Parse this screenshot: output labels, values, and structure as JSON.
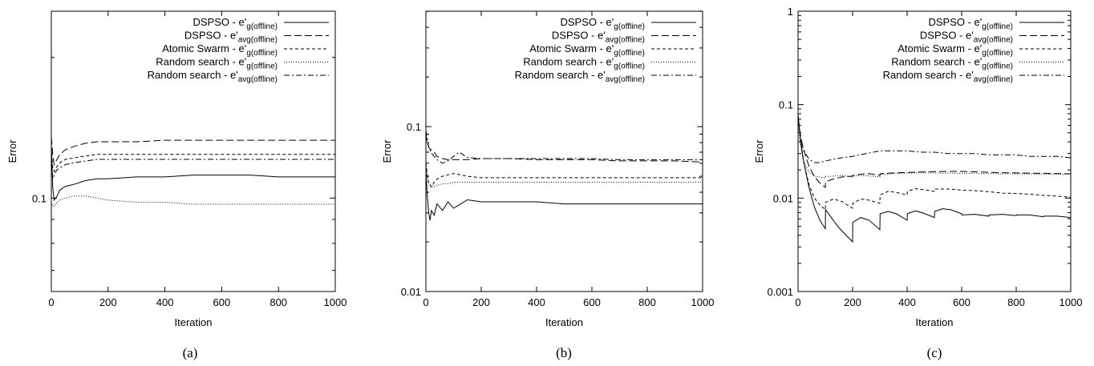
{
  "chart_data": [
    {
      "type": "line",
      "caption": "(a)",
      "xlabel": "Iteration",
      "ylabel": "Error",
      "xlim": [
        0,
        1000
      ],
      "ylim_log": [
        -1.2,
        -0.6
      ],
      "yscale": "log",
      "x_ticks": [
        "0",
        "200",
        "400",
        "600",
        "800",
        "1000"
      ],
      "y_ticks": [
        {
          "value": 0.1,
          "label": "0.1"
        }
      ],
      "legend_position": "top-right",
      "series": [
        {
          "name": "DSPSO - e'",
          "sub": "g(offline)",
          "dash": "",
          "x": [
            0,
            5,
            10,
            20,
            30,
            50,
            80,
            120,
            160,
            200,
            300,
            400,
            500,
            600,
            700,
            800,
            900,
            1000
          ],
          "y": [
            0.13,
            0.105,
            0.099,
            0.101,
            0.104,
            0.106,
            0.107,
            0.109,
            0.11,
            0.11,
            0.111,
            0.111,
            0.112,
            0.112,
            0.112,
            0.111,
            0.111,
            0.111
          ]
        },
        {
          "name": "DSPSO - e'",
          "sub": "avg(offline)",
          "dash": "9,4",
          "x": [
            0,
            5,
            10,
            20,
            30,
            50,
            80,
            120,
            160,
            200,
            300,
            400,
            500,
            600,
            700,
            800,
            900,
            1000
          ],
          "y": [
            0.135,
            0.124,
            0.118,
            0.121,
            0.124,
            0.127,
            0.129,
            0.131,
            0.132,
            0.132,
            0.132,
            0.133,
            0.133,
            0.133,
            0.133,
            0.133,
            0.133,
            0.133
          ]
        },
        {
          "name": "Atomic Swarm - e'",
          "sub": "g(offline)",
          "dash": "4,3",
          "x": [
            0,
            5,
            10,
            20,
            30,
            50,
            80,
            120,
            160,
            200,
            300,
            400,
            500,
            600,
            700,
            800,
            900,
            1000
          ],
          "y": [
            0.128,
            0.116,
            0.114,
            0.117,
            0.119,
            0.121,
            0.122,
            0.123,
            0.124,
            0.124,
            0.124,
            0.124,
            0.124,
            0.124,
            0.124,
            0.124,
            0.124,
            0.124
          ]
        },
        {
          "name": "Random search - e'",
          "sub": "g(offline)",
          "dash": "1,2",
          "x": [
            0,
            5,
            10,
            20,
            30,
            50,
            80,
            120,
            160,
            200,
            300,
            400,
            500,
            600,
            700,
            800,
            900,
            1000
          ],
          "y": [
            0.098,
            0.096,
            0.096,
            0.098,
            0.099,
            0.1,
            0.101,
            0.101,
            0.1,
            0.099,
            0.098,
            0.098,
            0.097,
            0.097,
            0.097,
            0.097,
            0.097,
            0.097
          ]
        },
        {
          "name": "Random search - e'",
          "sub": "avg(offline)",
          "dash": "7,3,2,3",
          "x": [
            0,
            5,
            10,
            20,
            30,
            50,
            80,
            120,
            160,
            200,
            300,
            400,
            500,
            600,
            700,
            800,
            900,
            1000
          ],
          "y": [
            0.12,
            0.11,
            0.112,
            0.115,
            0.116,
            0.118,
            0.119,
            0.12,
            0.121,
            0.121,
            0.121,
            0.121,
            0.121,
            0.121,
            0.121,
            0.121,
            0.121,
            0.121
          ]
        }
      ]
    },
    {
      "type": "line",
      "caption": "(b)",
      "xlabel": "Iteration",
      "ylabel": "Error",
      "xlim": [
        0,
        1000
      ],
      "ylim_log": [
        -2,
        -0.3
      ],
      "yscale": "log",
      "x_ticks": [
        "0",
        "200",
        "400",
        "600",
        "800",
        "1000"
      ],
      "y_ticks": [
        {
          "value": 0.01,
          "label": "0.01"
        },
        {
          "value": 0.1,
          "label": "0.1"
        }
      ],
      "legend_position": "top-right",
      "series": [
        {
          "name": "DSPSO - e'",
          "sub": "g(offline)",
          "dash": "",
          "x": [
            0,
            5,
            10,
            15,
            20,
            30,
            40,
            60,
            80,
            100,
            150,
            200,
            300,
            400,
            500,
            600,
            700,
            800,
            900,
            1000
          ],
          "y": [
            0.055,
            0.038,
            0.03,
            0.027,
            0.031,
            0.029,
            0.034,
            0.031,
            0.035,
            0.032,
            0.036,
            0.035,
            0.035,
            0.035,
            0.034,
            0.034,
            0.034,
            0.034,
            0.034,
            0.034
          ]
        },
        {
          "name": "DSPSO - e'",
          "sub": "avg(offline)",
          "dash": "9,4",
          "x": [
            0,
            5,
            10,
            20,
            30,
            40,
            60,
            80,
            100,
            150,
            200,
            300,
            400,
            500,
            600,
            700,
            800,
            900,
            1000
          ],
          "y": [
            0.09,
            0.08,
            0.075,
            0.072,
            0.07,
            0.066,
            0.064,
            0.063,
            0.063,
            0.063,
            0.064,
            0.064,
            0.063,
            0.063,
            0.063,
            0.062,
            0.062,
            0.062,
            0.061
          ]
        },
        {
          "name": "Atomic Swarm - e'",
          "sub": "g(offline)",
          "dash": "4,3",
          "x": [
            0,
            5,
            10,
            20,
            30,
            40,
            60,
            80,
            100,
            150,
            200,
            300,
            400,
            500,
            600,
            700,
            800,
            900,
            1000
          ],
          "y": [
            0.06,
            0.052,
            0.045,
            0.043,
            0.046,
            0.048,
            0.05,
            0.051,
            0.052,
            0.05,
            0.049,
            0.049,
            0.049,
            0.049,
            0.049,
            0.049,
            0.049,
            0.049,
            0.049
          ]
        },
        {
          "name": "Random search - e'",
          "sub": "g(offline)",
          "dash": "1,2",
          "x": [
            0,
            5,
            10,
            20,
            30,
            40,
            60,
            80,
            100,
            150,
            200,
            300,
            400,
            500,
            600,
            700,
            800,
            900,
            1000
          ],
          "y": [
            0.06,
            0.05,
            0.046,
            0.044,
            0.043,
            0.044,
            0.045,
            0.045,
            0.046,
            0.046,
            0.046,
            0.046,
            0.046,
            0.046,
            0.046,
            0.046,
            0.046,
            0.046,
            0.046
          ]
        },
        {
          "name": "Random search - e'",
          "sub": "avg(offline)",
          "dash": "7,3,2,3",
          "x": [
            0,
            5,
            10,
            20,
            30,
            40,
            60,
            80,
            100,
            120,
            150,
            200,
            300,
            400,
            500,
            600,
            700,
            800,
            900,
            1000
          ],
          "y": [
            0.095,
            0.085,
            0.075,
            0.069,
            0.066,
            0.063,
            0.06,
            0.062,
            0.066,
            0.07,
            0.065,
            0.064,
            0.064,
            0.064,
            0.064,
            0.064,
            0.063,
            0.063,
            0.063,
            0.063
          ]
        }
      ]
    },
    {
      "type": "line",
      "caption": "(c)",
      "xlabel": "Iteration",
      "ylabel": "Error",
      "xlim": [
        0,
        1000
      ],
      "ylim_log": [
        -3,
        0
      ],
      "yscale": "log",
      "x_ticks": [
        "0",
        "200",
        "400",
        "600",
        "800",
        "1000"
      ],
      "y_ticks": [
        {
          "value": 0.001,
          "label": "0.001"
        },
        {
          "value": 0.01,
          "label": "0.01"
        },
        {
          "value": 0.1,
          "label": "0.1"
        },
        {
          "value": 1,
          "label": "1"
        }
      ],
      "legend_position": "top-right",
      "series": [
        {
          "name": "DSPSO - e'",
          "sub": "g(offline)",
          "dash": "",
          "x": [
            0,
            10,
            20,
            40,
            60,
            80,
            100,
            101,
            120,
            150,
            200,
            201,
            230,
            260,
            300,
            301,
            330,
            360,
            400,
            401,
            430,
            460,
            500,
            501,
            530,
            560,
            600,
            601,
            650,
            700,
            701,
            750,
            800,
            801,
            850,
            900,
            901,
            950,
            1000
          ],
          "y": [
            0.08,
            0.04,
            0.025,
            0.013,
            0.008,
            0.0058,
            0.0047,
            0.0075,
            0.0063,
            0.0048,
            0.0034,
            0.0055,
            0.0062,
            0.0058,
            0.0046,
            0.0068,
            0.0072,
            0.0068,
            0.0058,
            0.0068,
            0.0073,
            0.0069,
            0.0062,
            0.0072,
            0.0077,
            0.0075,
            0.0068,
            0.0066,
            0.0067,
            0.0064,
            0.0066,
            0.0067,
            0.0065,
            0.0066,
            0.0066,
            0.0063,
            0.0064,
            0.0064,
            0.0062
          ]
        },
        {
          "name": "DSPSO - e'",
          "sub": "avg(offline)",
          "dash": "9,4",
          "x": [
            0,
            10,
            20,
            40,
            60,
            80,
            100,
            101,
            130,
            160,
            200,
            201,
            230,
            260,
            300,
            301,
            350,
            400,
            450,
            500,
            550,
            600,
            650,
            700,
            750,
            800,
            850,
            900,
            950,
            1000
          ],
          "y": [
            0.07,
            0.045,
            0.033,
            0.022,
            0.017,
            0.0145,
            0.013,
            0.015,
            0.016,
            0.0168,
            0.0172,
            0.0175,
            0.018,
            0.0183,
            0.0175,
            0.0182,
            0.0186,
            0.0188,
            0.019,
            0.0192,
            0.0193,
            0.0193,
            0.0191,
            0.0189,
            0.0187,
            0.0186,
            0.0185,
            0.0184,
            0.0183,
            0.0182
          ]
        },
        {
          "name": "Atomic Swarm - e'",
          "sub": "g(offline)",
          "dash": "4,3",
          "x": [
            0,
            10,
            20,
            40,
            60,
            80,
            100,
            101,
            130,
            160,
            200,
            201,
            230,
            260,
            300,
            301,
            330,
            360,
            400,
            401,
            430,
            460,
            500,
            501,
            550,
            600,
            650,
            700,
            750,
            800,
            850,
            900,
            950,
            1000
          ],
          "y": [
            0.075,
            0.04,
            0.025,
            0.014,
            0.01,
            0.0085,
            0.0075,
            0.009,
            0.0098,
            0.0092,
            0.0078,
            0.0088,
            0.0098,
            0.0095,
            0.0088,
            0.0108,
            0.0118,
            0.0115,
            0.0108,
            0.0118,
            0.0126,
            0.0123,
            0.0118,
            0.0125,
            0.0125,
            0.0122,
            0.012,
            0.0117,
            0.0113,
            0.0112,
            0.011,
            0.0107,
            0.0105,
            0.0102
          ]
        },
        {
          "name": "Random search - e'",
          "sub": "g(offline)",
          "dash": "1,2",
          "x": [
            0,
            10,
            20,
            40,
            60,
            80,
            100,
            101,
            130,
            160,
            200,
            201,
            230,
            260,
            300,
            301,
            350,
            400,
            450,
            500,
            550,
            600,
            650,
            700,
            750,
            800,
            850,
            900,
            950,
            1000
          ],
          "y": [
            0.06,
            0.035,
            0.025,
            0.019,
            0.0172,
            0.0168,
            0.0165,
            0.017,
            0.0172,
            0.0175,
            0.0168,
            0.0172,
            0.0175,
            0.0173,
            0.0168,
            0.0178,
            0.0183,
            0.0185,
            0.0186,
            0.0186,
            0.0185,
            0.0184,
            0.0184,
            0.0183,
            0.0182,
            0.0182,
            0.0181,
            0.0181,
            0.018,
            0.018
          ]
        },
        {
          "name": "Random search - e'",
          "sub": "avg(offline)",
          "dash": "7,3,2,3",
          "x": [
            0,
            10,
            20,
            40,
            60,
            80,
            100,
            130,
            160,
            200,
            250,
            300,
            350,
            400,
            450,
            500,
            550,
            600,
            650,
            700,
            750,
            800,
            850,
            900,
            950,
            1000
          ],
          "y": [
            0.07,
            0.042,
            0.033,
            0.026,
            0.024,
            0.024,
            0.025,
            0.026,
            0.027,
            0.028,
            0.03,
            0.032,
            0.032,
            0.032,
            0.031,
            0.031,
            0.03,
            0.03,
            0.03,
            0.029,
            0.029,
            0.029,
            0.028,
            0.028,
            0.028,
            0.027
          ]
        }
      ]
    }
  ]
}
